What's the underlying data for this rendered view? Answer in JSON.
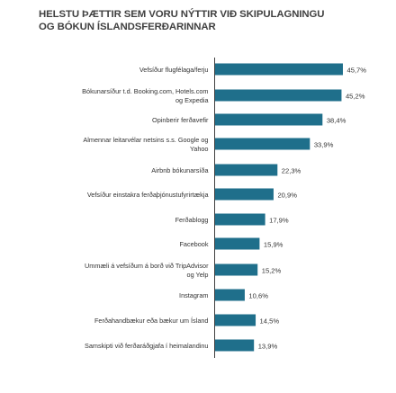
{
  "title_lines": [
    "HELSTU ÞÆTTIR SEM VORU NÝTTIR VIÐ SKIPULAGNINGU",
    "OG BÓKUN ÍSLANDSFERÐARINNAR"
  ],
  "colors": {
    "bar": "#1f6f8b",
    "axis": "#404040",
    "text": "#333333"
  },
  "chart_data": {
    "type": "bar",
    "orientation": "horizontal",
    "title": "HELSTU ÞÆTTIR SEM VORU NÝTTIR VIÐ SKIPULAGNINGU OG BÓKUN ÍSLANDSFERÐARINNAR",
    "categories": [
      [
        "Vefsíður flugfélaga/ferju"
      ],
      [
        "Bókunarsíður t.d. Booking.com, Hotels.com",
        "og Expedia"
      ],
      [
        "Opinberir ferðavefir"
      ],
      [
        "Almennar leitarvélar netsins s.s. Google og",
        "Yahoo"
      ],
      [
        "Airbnb bókunarsíða"
      ],
      [
        "Vefsíður einstakra ferðaþjónustufyrirtækja"
      ],
      [
        "Ferðablogg"
      ],
      [
        "Facebook"
      ],
      [
        "Ummæli á vefsíðum á borð við TripAdvisor",
        "og Yelp"
      ],
      [
        "Instagram"
      ],
      [
        "Ferðahandbækur eða bækur um Ísland"
      ],
      [
        "Samskipti við ferðaráðgjafa í heimalandinu"
      ]
    ],
    "values": [
      45.7,
      45.2,
      38.4,
      33.9,
      22.3,
      20.9,
      17.9,
      15.9,
      15.2,
      10.6,
      14.5,
      13.9
    ],
    "labels": [
      "45,7%",
      "45,2%",
      "38,4%",
      "33,9%",
      "22,3%",
      "20,9%",
      "17,9%",
      "15,9%",
      "15,2%",
      "10,6%",
      "14,5%",
      "13,9%"
    ],
    "xlim": [
      0,
      50
    ],
    "grid": false,
    "legend": "none"
  }
}
